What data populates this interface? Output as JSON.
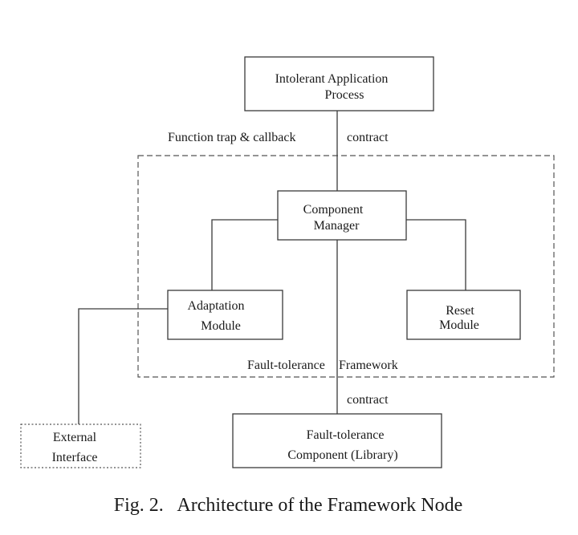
{
  "nodes": {
    "intolerant_app": {
      "line1": "Intolerant Application",
      "line2": "Process"
    },
    "component_manager": {
      "line1": "Component",
      "line2": "Manager"
    },
    "adaptation_module": {
      "line1": "Adaptation",
      "line2": "Module"
    },
    "reset_module": {
      "line1": "Reset",
      "line2": "Module"
    },
    "ft_component": {
      "line1": "Fault-tolerance",
      "line2": "Component (Library)"
    },
    "external_interface": {
      "line1": "External",
      "line2": "Interface"
    }
  },
  "edge_labels": {
    "function_trap": "Function trap & callback",
    "contract_top": "contract",
    "contract_bottom": "contract"
  },
  "group": {
    "label_part1": "Fault-tolerance",
    "label_part2": "Framework"
  },
  "caption": "Fig. 2.   Architecture of the Framework Node"
}
